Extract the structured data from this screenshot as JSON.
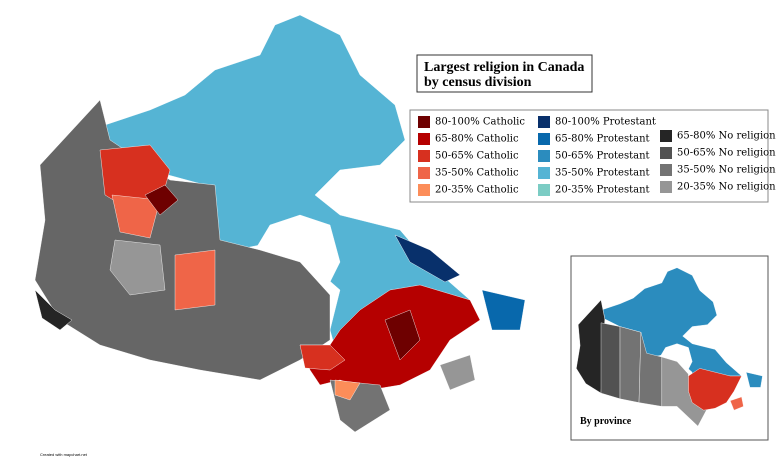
{
  "title_lines": [
    "Largest religion in Canada",
    "by census division"
  ],
  "legend": {
    "columns": [
      {
        "items": [
          {
            "label": "80-100% Catholic",
            "color": "#6e0000"
          },
          {
            "label": "65-80% Catholic",
            "color": "#b50000"
          },
          {
            "label": "50-65% Catholic",
            "color": "#d7301f"
          },
          {
            "label": "35-50% Catholic",
            "color": "#ef6548"
          },
          {
            "label": "20-35% Catholic",
            "color": "#fc8d59"
          }
        ]
      },
      {
        "items": [
          {
            "label": "80-100% Protestant",
            "color": "#08306b"
          },
          {
            "label": "65-80% Protestant",
            "color": "#0868ac"
          },
          {
            "label": "50-65% Protestant",
            "color": "#2b8cbe"
          },
          {
            "label": "35-50% Protestant",
            "color": "#55b4d4"
          },
          {
            "label": "20-35% Protestant",
            "color": "#7bccc4"
          }
        ]
      },
      {
        "items": [
          {
            "label": "65-80% No religion",
            "color": "#252525"
          },
          {
            "label": "50-65% No religion",
            "color": "#525252"
          },
          {
            "label": "35-50% No religion",
            "color": "#737373"
          },
          {
            "label": "20-35% No religion",
            "color": "#969696"
          }
        ]
      }
    ]
  },
  "inset_label": "By province",
  "credit": "Created with mapchart.net"
}
